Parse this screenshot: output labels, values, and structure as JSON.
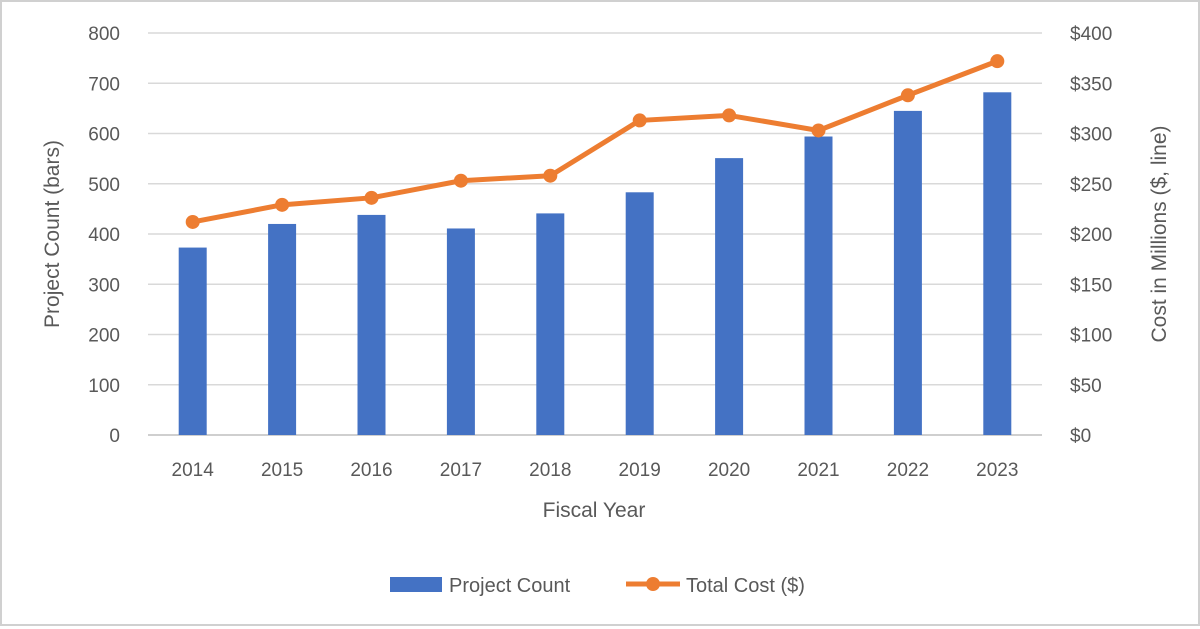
{
  "chart_data": {
    "type": "bar",
    "categories": [
      "2014",
      "2015",
      "2016",
      "2017",
      "2018",
      "2019",
      "2020",
      "2021",
      "2022",
      "2023"
    ],
    "series": [
      {
        "name": "Project Count",
        "type": "bar",
        "axis": "left",
        "color": "#4472C4",
        "values": [
          373,
          420,
          438,
          411,
          441,
          483,
          551,
          594,
          645,
          682
        ]
      },
      {
        "name": "Total Cost ($)",
        "type": "line",
        "axis": "right",
        "color": "#ED7D31",
        "marker": "circle",
        "values": [
          212,
          229,
          236,
          253,
          258,
          313,
          318,
          303,
          338,
          372
        ]
      }
    ],
    "xlabel": "Fiscal Year",
    "ylabel": "Project Count (bars)",
    "y2label": "Cost in Millions ($, line)",
    "ylim": [
      0,
      800
    ],
    "y2lim": [
      0,
      400
    ],
    "yticks": [
      "0",
      "100",
      "200",
      "300",
      "400",
      "500",
      "600",
      "700",
      "800"
    ],
    "y2ticks": [
      "$0",
      "$50",
      "$100",
      "$150",
      "$200",
      "$250",
      "$300",
      "$350",
      "$400"
    ],
    "grid": true,
    "gridColor": "#d9d9d9",
    "legend": "bottom"
  }
}
